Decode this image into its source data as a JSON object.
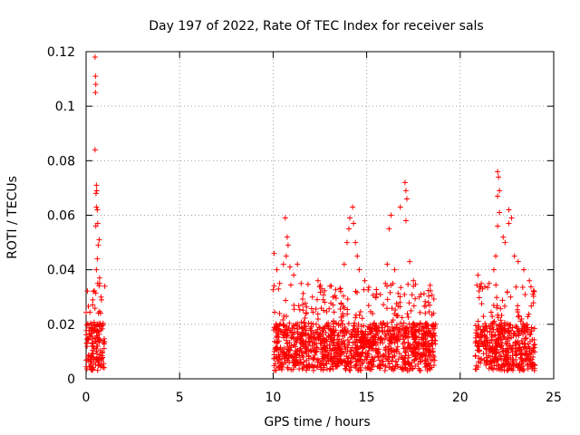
{
  "chart_data": {
    "type": "scatter",
    "title": "Day 197 of 2022, Rate Of TEC Index for receiver sals",
    "xlabel": "GPS time / hours",
    "ylabel": "ROTI / TECUs",
    "xlim": [
      0,
      25
    ],
    "ylim": [
      0,
      0.12
    ],
    "xticks": [
      0,
      5,
      10,
      15,
      20,
      25
    ],
    "yticks": [
      0,
      0.02,
      0.04,
      0.06,
      0.08,
      0.1,
      0.12
    ],
    "grid": true,
    "marker": "+",
    "color": "#ff0000",
    "clusters": [
      {
        "x_start": 0.0,
        "x_end": 1.0,
        "typical_low": 0.003,
        "typical_high": 0.028,
        "spikes": [
          {
            "x": 0.48,
            "y": 0.118
          },
          {
            "x": 0.5,
            "y": 0.111
          },
          {
            "x": 0.52,
            "y": 0.108
          },
          {
            "x": 0.5,
            "y": 0.105
          },
          {
            "x": 0.48,
            "y": 0.084
          },
          {
            "x": 0.55,
            "y": 0.071
          },
          {
            "x": 0.57,
            "y": 0.069
          },
          {
            "x": 0.53,
            "y": 0.068
          },
          {
            "x": 0.55,
            "y": 0.063
          },
          {
            "x": 0.6,
            "y": 0.062
          },
          {
            "x": 0.62,
            "y": 0.057
          },
          {
            "x": 0.52,
            "y": 0.056
          },
          {
            "x": 0.7,
            "y": 0.051
          },
          {
            "x": 0.65,
            "y": 0.049
          },
          {
            "x": 0.6,
            "y": 0.044
          },
          {
            "x": 0.55,
            "y": 0.04
          },
          {
            "x": 0.72,
            "y": 0.037
          },
          {
            "x": 0.62,
            "y": 0.035
          },
          {
            "x": 0.4,
            "y": 0.032
          },
          {
            "x": 0.8,
            "y": 0.03
          }
        ]
      },
      {
        "x_start": 10.0,
        "x_end": 18.7,
        "typical_low": 0.003,
        "typical_high": 0.028,
        "spikes": [
          {
            "x": 10.05,
            "y": 0.046
          },
          {
            "x": 10.2,
            "y": 0.04
          },
          {
            "x": 10.35,
            "y": 0.035
          },
          {
            "x": 10.55,
            "y": 0.042
          },
          {
            "x": 10.65,
            "y": 0.059
          },
          {
            "x": 10.75,
            "y": 0.052
          },
          {
            "x": 10.8,
            "y": 0.049
          },
          {
            "x": 10.7,
            "y": 0.045
          },
          {
            "x": 10.9,
            "y": 0.041
          },
          {
            "x": 11.1,
            "y": 0.038
          },
          {
            "x": 11.3,
            "y": 0.042
          },
          {
            "x": 11.5,
            "y": 0.035
          },
          {
            "x": 12.1,
            "y": 0.03
          },
          {
            "x": 12.4,
            "y": 0.036
          },
          {
            "x": 12.6,
            "y": 0.033
          },
          {
            "x": 13.2,
            "y": 0.03
          },
          {
            "x": 13.6,
            "y": 0.033
          },
          {
            "x": 13.8,
            "y": 0.042
          },
          {
            "x": 13.95,
            "y": 0.05
          },
          {
            "x": 14.05,
            "y": 0.055
          },
          {
            "x": 14.1,
            "y": 0.059
          },
          {
            "x": 14.25,
            "y": 0.063
          },
          {
            "x": 14.3,
            "y": 0.057
          },
          {
            "x": 14.4,
            "y": 0.05
          },
          {
            "x": 14.5,
            "y": 0.045
          },
          {
            "x": 14.6,
            "y": 0.04
          },
          {
            "x": 14.9,
            "y": 0.036
          },
          {
            "x": 15.5,
            "y": 0.03
          },
          {
            "x": 16.0,
            "y": 0.035
          },
          {
            "x": 16.1,
            "y": 0.042
          },
          {
            "x": 16.2,
            "y": 0.055
          },
          {
            "x": 16.3,
            "y": 0.06
          },
          {
            "x": 16.5,
            "y": 0.04
          },
          {
            "x": 16.8,
            "y": 0.063
          },
          {
            "x": 17.05,
            "y": 0.072
          },
          {
            "x": 17.1,
            "y": 0.069
          },
          {
            "x": 17.15,
            "y": 0.066
          },
          {
            "x": 17.1,
            "y": 0.058
          },
          {
            "x": 17.3,
            "y": 0.043
          },
          {
            "x": 17.5,
            "y": 0.036
          },
          {
            "x": 17.9,
            "y": 0.031
          },
          {
            "x": 18.3,
            "y": 0.028
          }
        ]
      },
      {
        "x_start": 20.8,
        "x_end": 24.0,
        "typical_low": 0.003,
        "typical_high": 0.028,
        "spikes": [
          {
            "x": 20.95,
            "y": 0.038
          },
          {
            "x": 21.2,
            "y": 0.033
          },
          {
            "x": 21.55,
            "y": 0.035
          },
          {
            "x": 21.8,
            "y": 0.04
          },
          {
            "x": 21.9,
            "y": 0.045
          },
          {
            "x": 22.0,
            "y": 0.076
          },
          {
            "x": 22.05,
            "y": 0.074
          },
          {
            "x": 22.1,
            "y": 0.069
          },
          {
            "x": 22.0,
            "y": 0.067
          },
          {
            "x": 22.1,
            "y": 0.061
          },
          {
            "x": 22.0,
            "y": 0.056
          },
          {
            "x": 22.3,
            "y": 0.052
          },
          {
            "x": 22.4,
            "y": 0.05
          },
          {
            "x": 22.6,
            "y": 0.062
          },
          {
            "x": 22.75,
            "y": 0.059
          },
          {
            "x": 22.6,
            "y": 0.057
          },
          {
            "x": 22.9,
            "y": 0.045
          },
          {
            "x": 23.1,
            "y": 0.043
          },
          {
            "x": 23.4,
            "y": 0.04
          },
          {
            "x": 23.7,
            "y": 0.036
          }
        ]
      }
    ]
  }
}
